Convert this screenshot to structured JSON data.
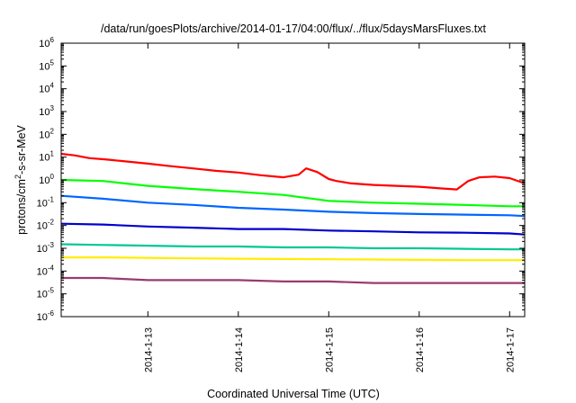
{
  "chart_data": {
    "type": "line",
    "title": "/data/run/goesPlots/archive/2014-01-17/04:00/flux/../flux/5daysMarsFluxes.txt",
    "xlabel": "Coordinated Universal Time (UTC)",
    "ylabel": {
      "prefix": "protons/cm",
      "sup": "2",
      "suffix": "-s-sr-MeV"
    },
    "yscale": "log",
    "ylim": [
      1e-06,
      1000000.0
    ],
    "yticks": [
      {
        "exp": "-6",
        "value": 1e-06
      },
      {
        "exp": "-5",
        "value": 1e-05
      },
      {
        "exp": "-4",
        "value": 0.0001
      },
      {
        "exp": "-3",
        "value": 0.001
      },
      {
        "exp": "-2",
        "value": 0.01
      },
      {
        "exp": "-1",
        "value": 0.1
      },
      {
        "exp": "0",
        "value": 1
      },
      {
        "exp": "1",
        "value": 10
      },
      {
        "exp": "2",
        "value": 100
      },
      {
        "exp": "3",
        "value": 1000
      },
      {
        "exp": "4",
        "value": 10000
      },
      {
        "exp": "5",
        "value": 100000
      },
      {
        "exp": "6",
        "value": 1000000
      }
    ],
    "ytick_base": "10",
    "xlim": [
      "2014-01-12T01:00",
      "2014-01-17T04:00"
    ],
    "xticks": [
      {
        "label": "2014-1-13",
        "date": "2014-01-13T00:00"
      },
      {
        "label": "2014-1-14",
        "date": "2014-01-14T00:00"
      },
      {
        "label": "2014-1-15",
        "date": "2014-01-15T00:00"
      },
      {
        "label": "2014-1-16",
        "date": "2014-01-16T00:00"
      },
      {
        "label": "2014-1-17",
        "date": "2014-01-17T00:00"
      }
    ],
    "grid": false,
    "legend": "none",
    "series": [
      {
        "color": "#ff0000",
        "x": [
          "2014-01-12T01:00",
          "2014-01-12T04:30",
          "2014-01-12T08:30",
          "2014-01-12T12:30",
          "2014-01-12T18:00",
          "2014-01-13T00:00",
          "2014-01-13T06:00",
          "2014-01-13T12:00",
          "2014-01-13T18:00",
          "2014-01-14T00:00",
          "2014-01-14T06:00",
          "2014-01-14T12:00",
          "2014-01-14T16:00",
          "2014-01-14T18:00",
          "2014-01-14T21:00",
          "2014-01-15T00:00",
          "2014-01-15T02:00",
          "2014-01-15T06:00",
          "2014-01-15T12:00",
          "2014-01-15T18:00",
          "2014-01-16T00:00",
          "2014-01-16T06:00",
          "2014-01-16T10:00",
          "2014-01-16T13:00",
          "2014-01-16T16:00",
          "2014-01-16T20:00",
          "2014-01-17T00:00",
          "2014-01-17T04:00"
        ],
        "values": [
          14,
          12,
          9,
          8,
          6.5,
          5.2,
          4,
          3.2,
          2.5,
          2.1,
          1.6,
          1.3,
          1.7,
          3.2,
          2.2,
          1.1,
          0.9,
          0.7,
          0.6,
          0.55,
          0.5,
          0.42,
          0.38,
          0.9,
          1.3,
          1.4,
          1.2,
          0.7
        ]
      },
      {
        "color": "#00ff00",
        "x": [
          "2014-01-12T01:00",
          "2014-01-12T12:00",
          "2014-01-13T00:00",
          "2014-01-13T12:00",
          "2014-01-14T00:00",
          "2014-01-14T12:00",
          "2014-01-15T00:00",
          "2014-01-15T12:00",
          "2014-01-16T00:00",
          "2014-01-16T12:00",
          "2014-01-17T00:00",
          "2014-01-17T04:00"
        ],
        "values": [
          1.0,
          0.9,
          0.55,
          0.4,
          0.3,
          0.22,
          0.12,
          0.1,
          0.09,
          0.08,
          0.07,
          0.07
        ]
      },
      {
        "color": "#0066ff",
        "x": [
          "2014-01-12T01:00",
          "2014-01-12T12:00",
          "2014-01-13T00:00",
          "2014-01-13T12:00",
          "2014-01-14T00:00",
          "2014-01-14T12:00",
          "2014-01-15T00:00",
          "2014-01-15T12:00",
          "2014-01-16T00:00",
          "2014-01-16T12:00",
          "2014-01-17T00:00",
          "2014-01-17T04:00"
        ],
        "values": [
          0.2,
          0.15,
          0.1,
          0.08,
          0.06,
          0.05,
          0.04,
          0.035,
          0.032,
          0.03,
          0.028,
          0.026
        ]
      },
      {
        "color": "#0000cc",
        "x": [
          "2014-01-12T01:00",
          "2014-01-12T12:00",
          "2014-01-13T00:00",
          "2014-01-13T12:00",
          "2014-01-14T00:00",
          "2014-01-14T12:00",
          "2014-01-15T00:00",
          "2014-01-15T12:00",
          "2014-01-16T00:00",
          "2014-01-16T12:00",
          "2014-01-17T00:00",
          "2014-01-17T04:00"
        ],
        "values": [
          0.012,
          0.011,
          0.009,
          0.008,
          0.007,
          0.007,
          0.006,
          0.0055,
          0.005,
          0.0048,
          0.0045,
          0.004
        ]
      },
      {
        "color": "#00c896",
        "x": [
          "2014-01-12T01:00",
          "2014-01-12T12:00",
          "2014-01-13T00:00",
          "2014-01-13T12:00",
          "2014-01-14T00:00",
          "2014-01-14T12:00",
          "2014-01-15T00:00",
          "2014-01-15T12:00",
          "2014-01-16T00:00",
          "2014-01-16T12:00",
          "2014-01-17T00:00",
          "2014-01-17T04:00"
        ],
        "values": [
          0.0015,
          0.0014,
          0.0013,
          0.0012,
          0.0012,
          0.0011,
          0.0011,
          0.001,
          0.001,
          0.00095,
          0.0009,
          0.0009
        ]
      },
      {
        "color": "#ffee00",
        "x": [
          "2014-01-12T01:00",
          "2014-01-12T12:00",
          "2014-01-13T00:00",
          "2014-01-13T12:00",
          "2014-01-14T00:00",
          "2014-01-14T12:00",
          "2014-01-15T00:00",
          "2014-01-15T12:00",
          "2014-01-16T00:00",
          "2014-01-16T12:00",
          "2014-01-17T00:00",
          "2014-01-17T04:00"
        ],
        "values": [
          0.0004,
          0.0004,
          0.00038,
          0.00036,
          0.00035,
          0.00034,
          0.00033,
          0.00032,
          0.00031,
          0.0003,
          0.0003,
          0.0003
        ]
      },
      {
        "color": "#9b3a6e",
        "x": [
          "2014-01-12T01:00",
          "2014-01-12T12:00",
          "2014-01-13T00:00",
          "2014-01-13T12:00",
          "2014-01-14T00:00",
          "2014-01-14T12:00",
          "2014-01-15T00:00",
          "2014-01-15T12:00",
          "2014-01-16T00:00",
          "2014-01-16T12:00",
          "2014-01-17T00:00",
          "2014-01-17T04:00"
        ],
        "values": [
          5e-05,
          5e-05,
          4e-05,
          4e-05,
          4e-05,
          3.5e-05,
          3.5e-05,
          3e-05,
          3e-05,
          3e-05,
          3e-05,
          3e-05
        ]
      }
    ]
  }
}
